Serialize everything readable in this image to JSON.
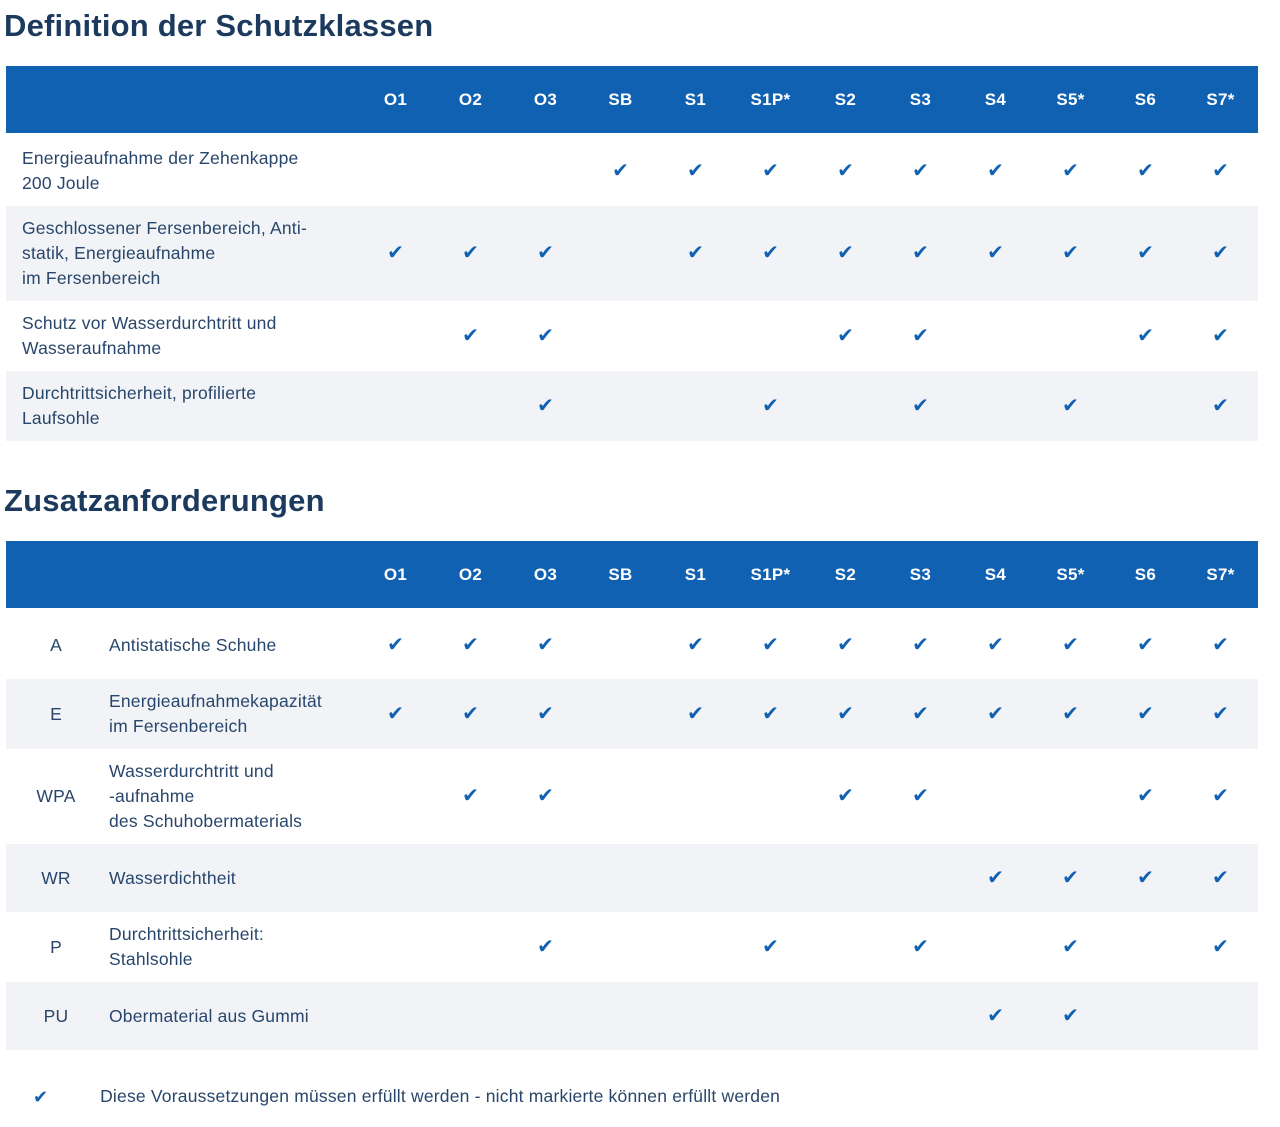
{
  "icons": {
    "check": "✔"
  },
  "colors": {
    "header_blue": "#1161b2",
    "check_blue": "#1161b2",
    "row_alt_gray": "#f1f3f7",
    "title_navy": "#1c3a5e",
    "text_navy": "#28466b"
  },
  "columns": [
    "O1",
    "O2",
    "O3",
    "SB",
    "S1",
    "S1P*",
    "S2",
    "S3",
    "S4",
    "S5*",
    "S6",
    "S7*"
  ],
  "tables": [
    {
      "title": "Definition der Schutzklassen",
      "has_code_column": false,
      "rows": [
        {
          "label_lines": [
            "Energieaufnahme der Zehenkappe",
            "200 Joule"
          ],
          "checks": [
            0,
            0,
            0,
            1,
            1,
            1,
            1,
            1,
            1,
            1,
            1,
            1
          ]
        },
        {
          "label_lines": [
            "Geschlossener Fersenbereich, Anti-",
            "statik, Energieaufnahme",
            "im Fersenbereich"
          ],
          "checks": [
            1,
            1,
            1,
            0,
            1,
            1,
            1,
            1,
            1,
            1,
            1,
            1
          ]
        },
        {
          "label_lines": [
            "Schutz vor Wasserdurchtritt und",
            "Wasseraufnahme"
          ],
          "checks": [
            0,
            1,
            1,
            0,
            0,
            0,
            1,
            1,
            0,
            0,
            1,
            1
          ]
        },
        {
          "label_lines": [
            "Durchtrittsicherheit, profilierte",
            "Laufsohle"
          ],
          "checks": [
            0,
            0,
            1,
            0,
            0,
            1,
            0,
            1,
            0,
            1,
            0,
            1
          ]
        }
      ]
    },
    {
      "title": "Zusatzanforderungen",
      "has_code_column": true,
      "rows": [
        {
          "code": "A",
          "label_lines": [
            "Antistatische Schuhe"
          ],
          "checks": [
            1,
            1,
            1,
            0,
            1,
            1,
            1,
            1,
            1,
            1,
            1,
            1
          ]
        },
        {
          "code": "E",
          "label_lines": [
            "Energieaufnahmekapazität",
            "im Fersenbereich"
          ],
          "checks": [
            1,
            1,
            1,
            0,
            1,
            1,
            1,
            1,
            1,
            1,
            1,
            1
          ]
        },
        {
          "code": "WPA",
          "label_lines": [
            "Wasserdurchtritt und",
            "-aufnahme",
            "des Schuhobermaterials"
          ],
          "checks": [
            0,
            1,
            1,
            0,
            0,
            0,
            1,
            1,
            0,
            0,
            1,
            1
          ]
        },
        {
          "code": "WR",
          "label_lines": [
            "Wasserdichtheit"
          ],
          "checks": [
            0,
            0,
            0,
            0,
            0,
            0,
            0,
            0,
            1,
            1,
            1,
            1
          ]
        },
        {
          "code": "P",
          "label_lines": [
            "Durchtrittsicherheit:",
            "Stahlsohle"
          ],
          "checks": [
            0,
            0,
            1,
            0,
            0,
            1,
            0,
            1,
            0,
            1,
            0,
            1
          ]
        },
        {
          "code": "PU",
          "label_lines": [
            "Obermaterial aus Gummi"
          ],
          "checks": [
            0,
            0,
            0,
            0,
            0,
            0,
            0,
            0,
            1,
            1,
            0,
            0
          ]
        }
      ]
    }
  ],
  "legend": {
    "text": "Diese Voraussetzungen müssen erfüllt werden - nicht markierte können erfüllt werden"
  }
}
